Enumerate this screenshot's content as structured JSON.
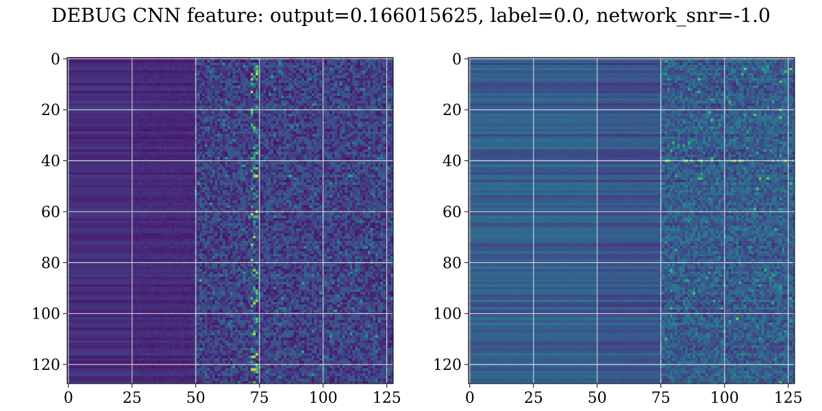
{
  "title": "DEBUG CNN feature: output=0.166015625, label=0.0, network_snr=-1.0",
  "chart_data": [
    {
      "type": "heatmap",
      "name": "left-heatmap",
      "colormap": "viridis",
      "rows": 128,
      "cols": 128,
      "xlim": [
        0,
        127
      ],
      "ylim": [
        127,
        0
      ],
      "xticks": [
        0,
        25,
        50,
        75,
        100,
        125
      ],
      "yticks": [
        0,
        20,
        40,
        60,
        80,
        100,
        120
      ],
      "grid": true,
      "description_values": {
        "background_level": 0.18,
        "onset_column": 50,
        "bright_band_column": 73,
        "bright_band_level": 0.85
      }
    },
    {
      "type": "heatmap",
      "name": "right-heatmap",
      "colormap": "viridis",
      "rows": 128,
      "cols": 128,
      "xlim": [
        0,
        127
      ],
      "ylim": [
        127,
        0
      ],
      "xticks": [
        0,
        25,
        50,
        75,
        100,
        125
      ],
      "yticks": [
        0,
        20,
        40,
        60,
        80,
        100,
        120
      ],
      "grid": true,
      "description_values": {
        "background_level": 0.32,
        "onset_column": 75,
        "bright_row": 40,
        "bright_row_level": 0.8
      }
    }
  ],
  "colors": {
    "grid": "#e6e6e6",
    "frame": "#000000"
  }
}
